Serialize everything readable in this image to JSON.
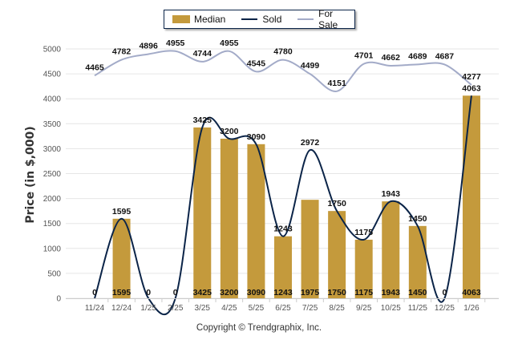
{
  "chart_data": {
    "type": "bar",
    "title": "",
    "xlabel": "",
    "ylabel": "Price (in $,000)",
    "ylim": [
      0,
      5000
    ],
    "yticks": [
      0,
      500,
      1000,
      1500,
      2000,
      2500,
      3000,
      3500,
      4000,
      4500,
      5000
    ],
    "grid": true,
    "legend_position": "top-center",
    "categories": [
      "11/24",
      "12/24",
      "1/25",
      "2/25",
      "3/25",
      "4/25",
      "5/25",
      "6/25",
      "7/25",
      "8/25",
      "9/25",
      "10/25",
      "11/25",
      "12/25",
      "1/26"
    ],
    "series": [
      {
        "name": "Median",
        "type": "bar",
        "color": "#c49a3c",
        "values": [
          0,
          1595,
          0,
          0,
          3425,
          3200,
          3090,
          1243,
          1975,
          1750,
          1175,
          1943,
          1450,
          0,
          4063
        ]
      },
      {
        "name": "Sold",
        "type": "line",
        "color": "#0b2448",
        "values": [
          0,
          1595,
          0,
          0,
          3425,
          3200,
          3090,
          1243,
          2972,
          1750,
          1175,
          1943,
          1450,
          0,
          4063
        ]
      },
      {
        "name": "For Sale",
        "type": "line",
        "color": "#a3abc8",
        "values": [
          4465,
          4782,
          4896,
          4955,
          4744,
          4955,
          4545,
          4780,
          4499,
          4151,
          4701,
          4662,
          4689,
          4687,
          4277
        ]
      }
    ]
  },
  "legend": {
    "median": "Median",
    "sold": "Sold",
    "for_sale": "For Sale"
  },
  "footer": {
    "copyright": "Copyright © Trendgraphix, Inc."
  }
}
